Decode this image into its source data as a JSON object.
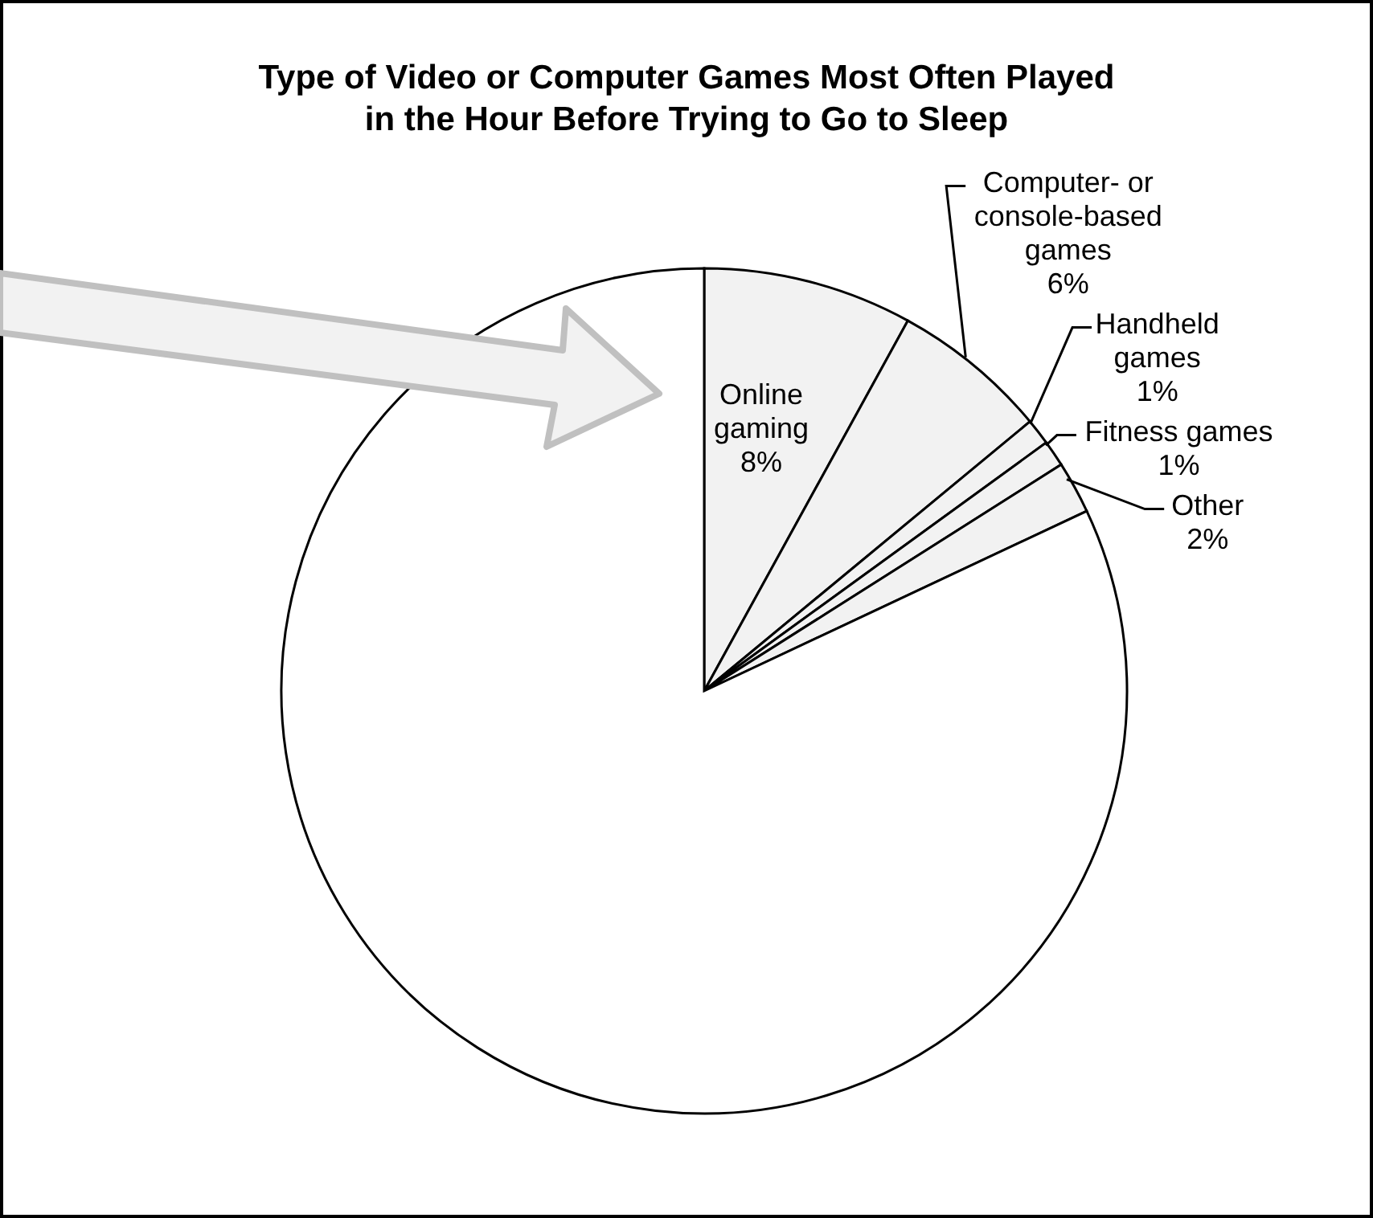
{
  "chart_data": {
    "type": "pie",
    "title": "Type of Video or Computer Games Most Often Played\nin the Hour Before Trying to Go to Sleep",
    "categories": [
      "Online gaming",
      "Computer- or console-based games",
      "Handheld games",
      "Fitness games",
      "Other",
      null
    ],
    "values": [
      8,
      6,
      1,
      1,
      2,
      82
    ],
    "value_labels": [
      "8%",
      "6%",
      "1%",
      "1%",
      "2%",
      null
    ],
    "colors": [
      "#f2f2f2",
      "#f2f2f2",
      "#f2f2f2",
      "#f2f2f2",
      "#f2f2f2",
      "#ffffff"
    ]
  }
}
